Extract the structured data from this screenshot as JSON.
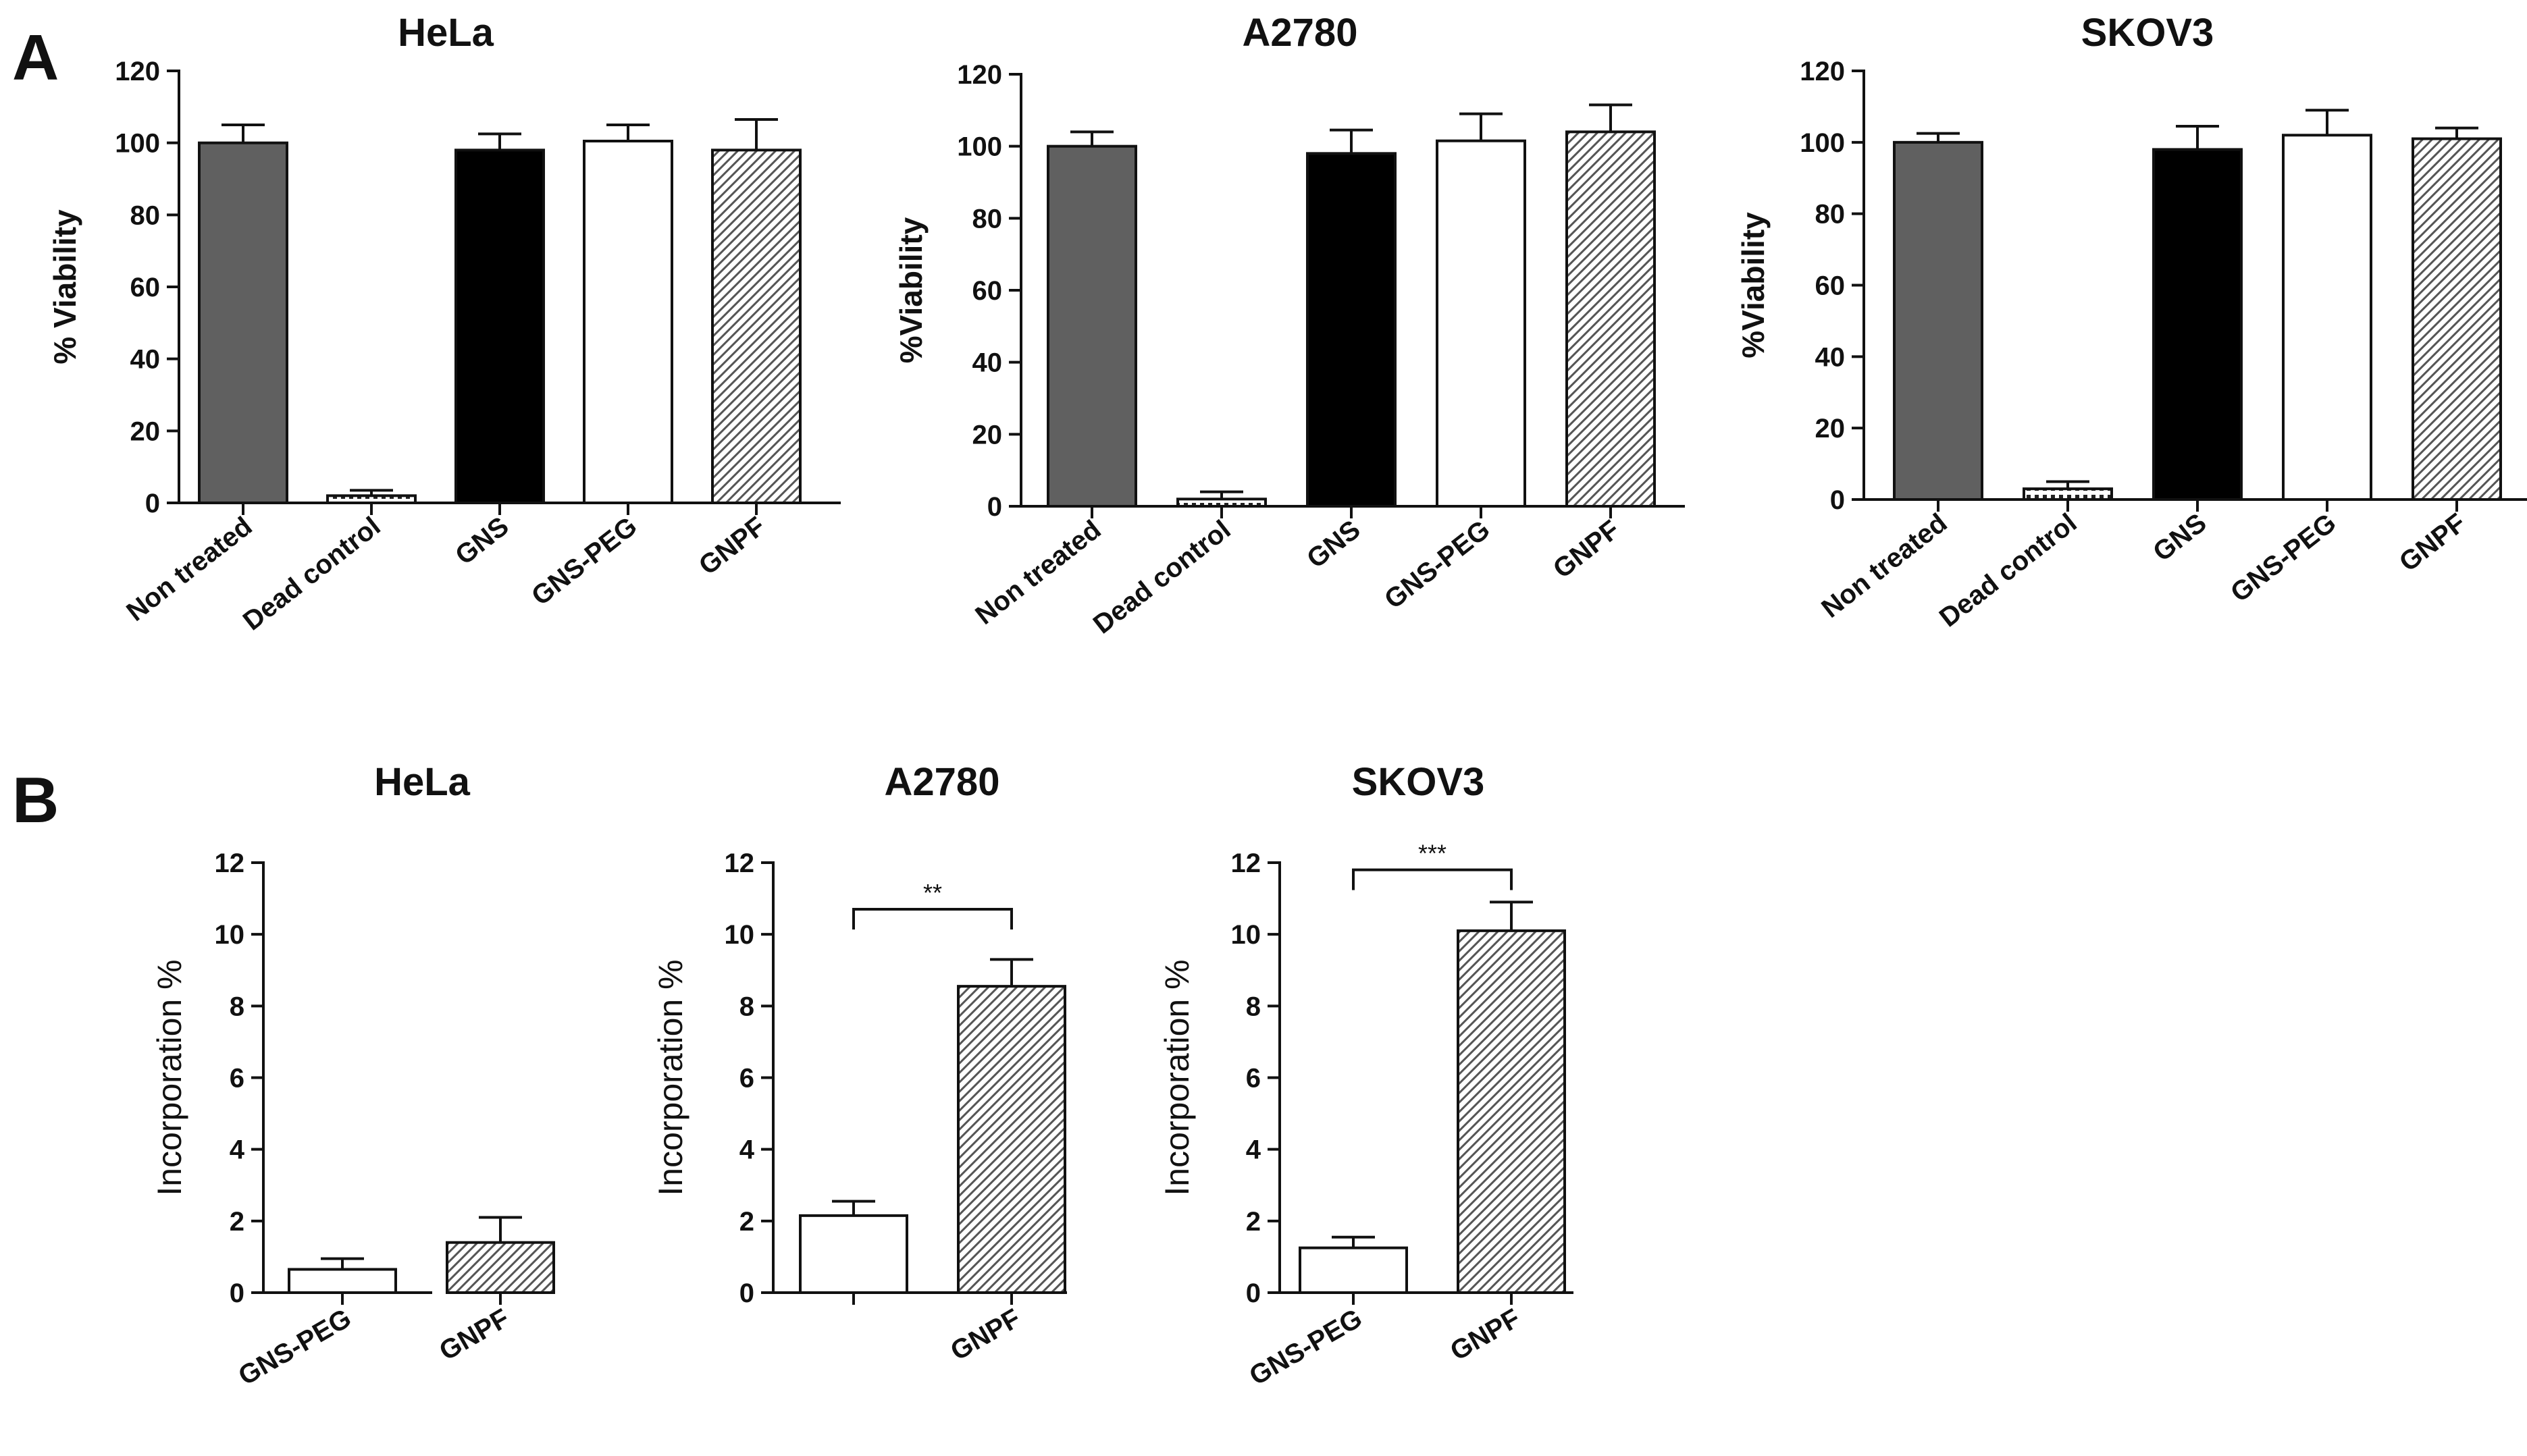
{
  "panels": [
    {
      "letter": "A"
    },
    {
      "letter": "B"
    }
  ],
  "chart_data": [
    {
      "panel": "A",
      "type": "bar",
      "title": "HeLa",
      "ylabel": "% Viability",
      "xlabel": "",
      "ylim": [
        0,
        120
      ],
      "yticks": [
        "0",
        "20",
        "40",
        "60",
        "80",
        "100",
        "120"
      ],
      "categories": [
        "Non treated",
        "Dead control",
        "GNS",
        "GNS-PEG",
        "GNPF"
      ],
      "values": [
        100,
        2,
        98,
        100.5,
        98
      ],
      "errors": [
        5,
        1.5,
        4.5,
        4.5,
        8.5
      ],
      "styles": [
        "#606060",
        "dots",
        "#000000",
        "#ffffff",
        "hatch"
      ],
      "significance": []
    },
    {
      "panel": "A",
      "type": "bar",
      "title": "A2780",
      "ylabel": "%Viability",
      "xlabel": "",
      "ylim": [
        0,
        120
      ],
      "yticks": [
        "0",
        "20",
        "40",
        "60",
        "80",
        "100",
        "120"
      ],
      "categories": [
        "Non treated",
        "Dead control",
        "GNS",
        "GNS-PEG",
        "GNPF"
      ],
      "values": [
        100,
        2,
        98,
        101.5,
        104
      ],
      "errors": [
        4,
        2,
        6.5,
        7.5,
        7.5
      ],
      "styles": [
        "#606060",
        "dots",
        "#000000",
        "#ffffff",
        "hatch"
      ],
      "significance": []
    },
    {
      "panel": "A",
      "type": "bar",
      "title": "SKOV3",
      "ylabel": "%Viability",
      "xlabel": "",
      "ylim": [
        0,
        120
      ],
      "yticks": [
        "0",
        "20",
        "40",
        "60",
        "80",
        "100",
        "120"
      ],
      "categories": [
        "Non treated",
        "Dead control",
        "GNS",
        "GNS-PEG",
        "GNPF"
      ],
      "values": [
        100,
        3,
        98,
        102,
        101
      ],
      "errors": [
        2.5,
        2,
        6.5,
        7,
        3
      ],
      "styles": [
        "#606060",
        "dots",
        "#000000",
        "#ffffff",
        "hatch"
      ],
      "significance": []
    },
    {
      "panel": "B",
      "type": "bar",
      "title": "HeLa",
      "ylabel": "Incorporation %",
      "xlabel": "",
      "ylim": [
        0,
        12
      ],
      "yticks": [
        "0",
        "2",
        "4",
        "6",
        "8",
        "10",
        "12"
      ],
      "categories": [
        "GNS-PEG",
        "GNPF"
      ],
      "values": [
        0.65,
        1.4
      ],
      "errors": [
        0.3,
        0.7
      ],
      "styles": [
        "#ffffff",
        "hatch"
      ],
      "significance": []
    },
    {
      "panel": "B",
      "type": "bar",
      "title": "A2780",
      "ylabel": "Incorporation %",
      "xlabel": "",
      "ylim": [
        0,
        12
      ],
      "yticks": [
        "0",
        "2",
        "4",
        "6",
        "8",
        "10",
        "12"
      ],
      "categories": [
        "",
        "GNPF"
      ],
      "values": [
        2.15,
        8.55
      ],
      "errors": [
        0.4,
        0.75
      ],
      "styles": [
        "#ffffff",
        "hatch"
      ],
      "significance": [
        {
          "label": "**",
          "y": 10.7
        }
      ]
    },
    {
      "panel": "B",
      "type": "bar",
      "title": "SKOV3",
      "ylabel": "Incorporation %",
      "xlabel": "",
      "ylim": [
        0,
        12
      ],
      "yticks": [
        "0",
        "2",
        "4",
        "6",
        "8",
        "10",
        "12"
      ],
      "categories": [
        "GNS-PEG",
        "GNPF"
      ],
      "values": [
        1.25,
        10.1
      ],
      "errors": [
        0.3,
        0.8
      ],
      "styles": [
        "#ffffff",
        "hatch"
      ],
      "significance": [
        {
          "label": "***",
          "y": 11.8
        }
      ]
    }
  ]
}
